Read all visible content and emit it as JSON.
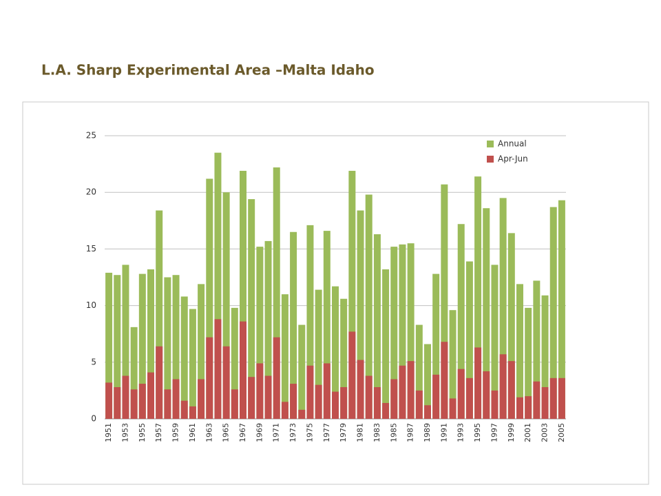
{
  "chart_data": {
    "type": "bar",
    "title": "L.A. Sharp Experimental Area –Malta Idaho",
    "barmode": "overlay",
    "categories": [
      "1951",
      null,
      "1953",
      null,
      "1955",
      null,
      "1957",
      null,
      "1959",
      null,
      "1961",
      null,
      "1963",
      null,
      "1965",
      null,
      "1967",
      null,
      "1969",
      null,
      "1971",
      null,
      "1973",
      null,
      "1975",
      null,
      "1977",
      null,
      "1979",
      null,
      "1981",
      null,
      "1983",
      null,
      "1985",
      null,
      "1987",
      null,
      "1989",
      null,
      "1991",
      null,
      "1993",
      null,
      "1995",
      null,
      "1997",
      null,
      "1999",
      null,
      "2001",
      null,
      "2003",
      null,
      "2005"
    ],
    "series": [
      {
        "name": "Annual",
        "color": "#9bbb59",
        "values": [
          12.9,
          12.7,
          13.6,
          8.1,
          12.8,
          13.2,
          18.4,
          12.5,
          12.7,
          10.8,
          9.7,
          11.9,
          21.2,
          23.5,
          20.0,
          9.8,
          21.9,
          19.4,
          15.2,
          15.7,
          22.2,
          11.0,
          16.5,
          8.3,
          17.1,
          11.4,
          16.6,
          11.7,
          10.6,
          21.9,
          18.4,
          19.8,
          16.3,
          13.2,
          15.2,
          15.4,
          15.5,
          8.3,
          6.6,
          12.8,
          20.7,
          9.6,
          17.2,
          13.9,
          21.4,
          18.6,
          13.6,
          19.5,
          16.4,
          11.9,
          9.8,
          12.2,
          10.9,
          18.7,
          19.3
        ]
      },
      {
        "name": "Apr-Jun",
        "color": "#c0504d",
        "values": [
          3.2,
          2.8,
          3.8,
          2.6,
          3.1,
          4.1,
          6.4,
          2.6,
          3.5,
          1.6,
          1.1,
          3.5,
          7.2,
          8.8,
          6.4,
          2.6,
          8.6,
          3.7,
          4.9,
          3.8,
          7.2,
          1.5,
          3.1,
          0.8,
          4.7,
          3.0,
          4.9,
          2.4,
          2.8,
          7.7,
          5.2,
          3.8,
          2.8,
          1.4,
          3.5,
          4.7,
          5.1,
          2.5,
          1.2,
          3.9,
          6.8,
          1.8,
          4.4,
          3.6,
          6.3,
          4.2,
          2.5,
          5.7,
          5.1,
          1.9,
          2.0,
          3.3,
          2.8,
          3.6,
          3.6
        ]
      }
    ],
    "ylim": [
      0,
      25
    ],
    "yticks": [
      0,
      5,
      10,
      15,
      20,
      25
    ],
    "grid": true,
    "legend": "upper right"
  }
}
